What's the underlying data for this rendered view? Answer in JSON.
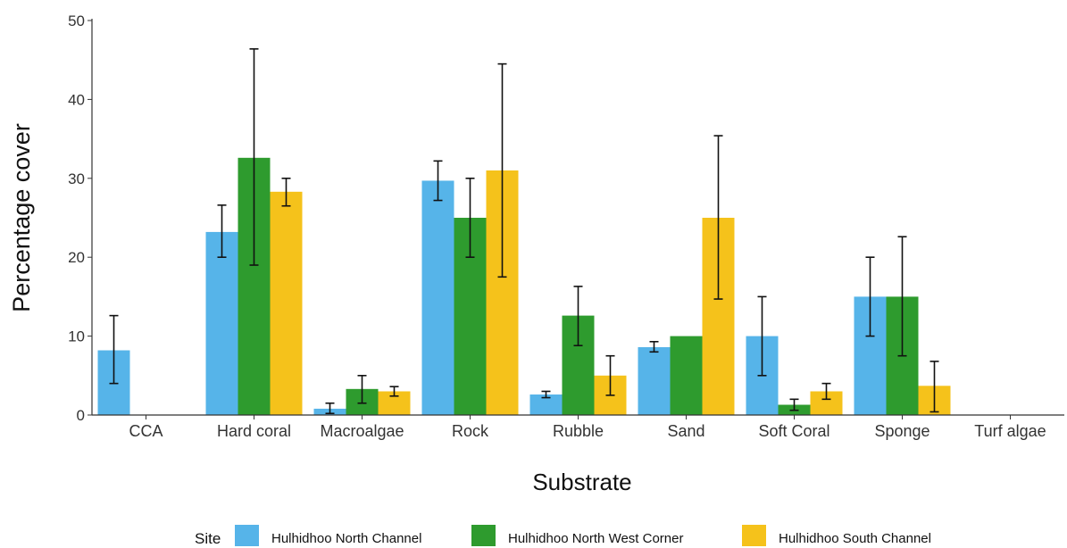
{
  "chart_data": {
    "type": "bar",
    "xlabel": "Substrate",
    "ylabel": "Percentage cover",
    "ylim": [
      0,
      50
    ],
    "yticks": [
      0,
      10,
      20,
      30,
      40,
      50
    ],
    "grid": false,
    "legend_placement": "bottom",
    "legend_title": "Site",
    "categories": [
      "CCA",
      "Hard coral",
      "Macroalgae",
      "Rock",
      "Rubble",
      "Sand",
      "Soft Coral",
      "Sponge",
      "Turf algae"
    ],
    "series": [
      {
        "name": "Hulhidhoo North Channel",
        "color": "#56B4E9",
        "values": [
          8.2,
          23.2,
          0.8,
          29.7,
          2.6,
          8.6,
          10.0,
          15.0,
          0
        ],
        "error_low": [
          4.0,
          20.0,
          0.2,
          27.2,
          2.2,
          8.0,
          5.0,
          10.0,
          null
        ],
        "error_high": [
          12.6,
          26.6,
          1.5,
          32.2,
          3.0,
          9.3,
          15.0,
          20.0,
          null
        ]
      },
      {
        "name": "Hulhidhoo North West Corner",
        "color": "#2E9B2E",
        "values": [
          0,
          32.6,
          3.3,
          25.0,
          12.6,
          10.0,
          1.3,
          15.0,
          0
        ],
        "error_low": [
          null,
          19.0,
          1.5,
          20.0,
          8.8,
          null,
          0.6,
          7.5,
          null
        ],
        "error_high": [
          null,
          46.4,
          5.0,
          30.0,
          16.3,
          null,
          2.0,
          22.6,
          null
        ]
      },
      {
        "name": "Hulhidhoo South Channel",
        "color": "#F5C21B",
        "values": [
          0,
          28.3,
          3.0,
          31.0,
          5.0,
          25.0,
          3.0,
          3.7,
          0
        ],
        "error_low": [
          null,
          26.5,
          2.4,
          17.5,
          2.5,
          14.7,
          2.0,
          0.4,
          null
        ],
        "error_high": [
          null,
          30.0,
          3.6,
          44.5,
          7.5,
          35.4,
          4.0,
          6.8,
          null
        ]
      }
    ]
  }
}
